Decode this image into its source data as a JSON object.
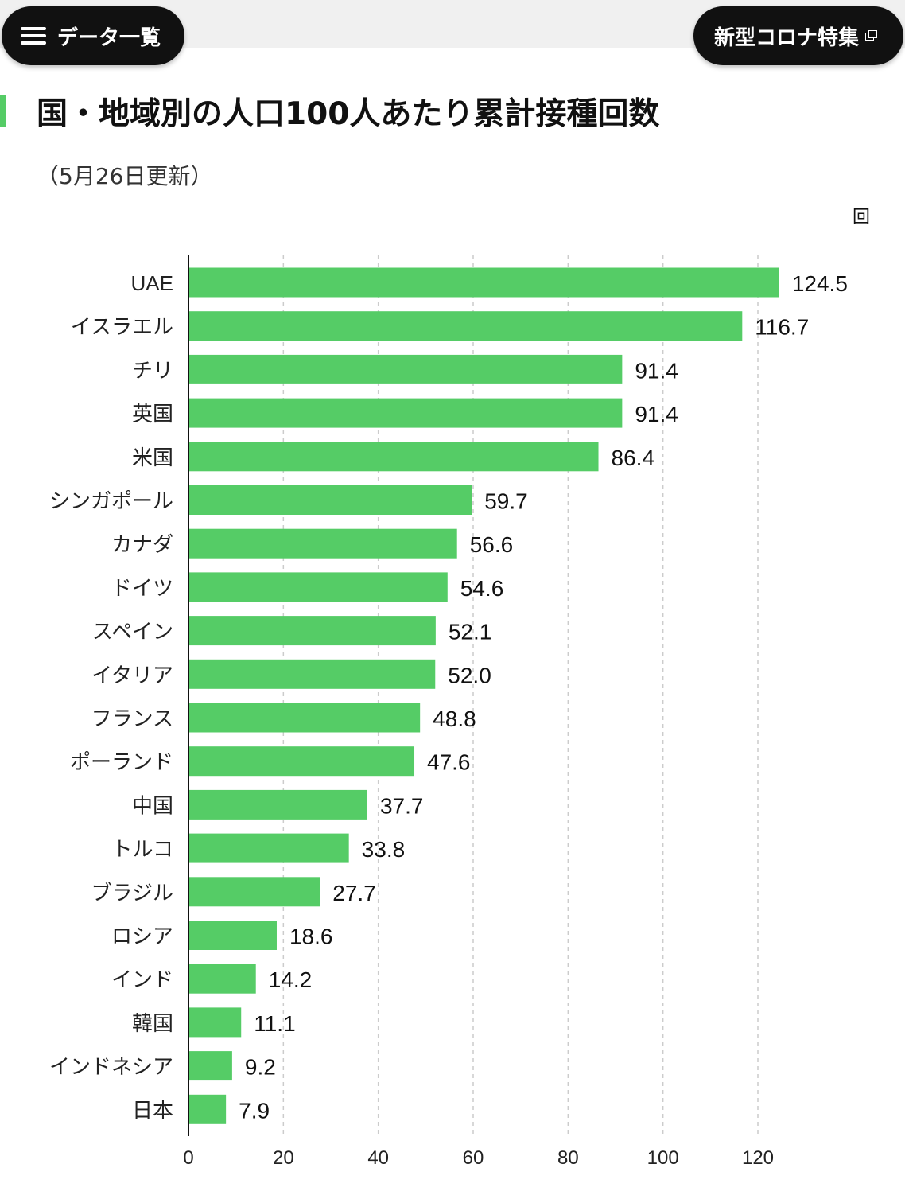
{
  "header": {
    "menu_label": "データ一覧",
    "feature_label": "新型コロナ特集"
  },
  "chart_data": {
    "type": "bar",
    "orientation": "horizontal",
    "title": "国・地域別の人口100人あたり累計接種回数",
    "subtitle": "（5月26日更新）",
    "unit": "回",
    "categories": [
      "UAE",
      "イスラエル",
      "チリ",
      "英国",
      "米国",
      "シンガポール",
      "カナダ",
      "ドイツ",
      "スペイン",
      "イタリア",
      "フランス",
      "ポーランド",
      "中国",
      "トルコ",
      "ブラジル",
      "ロシア",
      "インド",
      "韓国",
      "インドネシア",
      "日本"
    ],
    "values": [
      124.5,
      116.7,
      91.4,
      91.4,
      86.4,
      59.7,
      56.6,
      54.6,
      52.1,
      52.0,
      48.8,
      47.6,
      37.7,
      33.8,
      27.7,
      18.6,
      14.2,
      11.1,
      9.2,
      7.9
    ],
    "value_labels": [
      "124.5",
      "116.7",
      "91.4",
      "91.4",
      "86.4",
      "59.7",
      "56.6",
      "54.6",
      "52.1",
      "52.0",
      "48.8",
      "47.6",
      "37.7",
      "33.8",
      "27.7",
      "18.6",
      "14.2",
      "11.1",
      "9.2",
      "7.9"
    ],
    "xlim": [
      0,
      120
    ],
    "xticks": [
      0,
      20,
      40,
      60,
      80,
      100,
      120
    ],
    "grid": true,
    "bar_color": "#55cc66"
  }
}
